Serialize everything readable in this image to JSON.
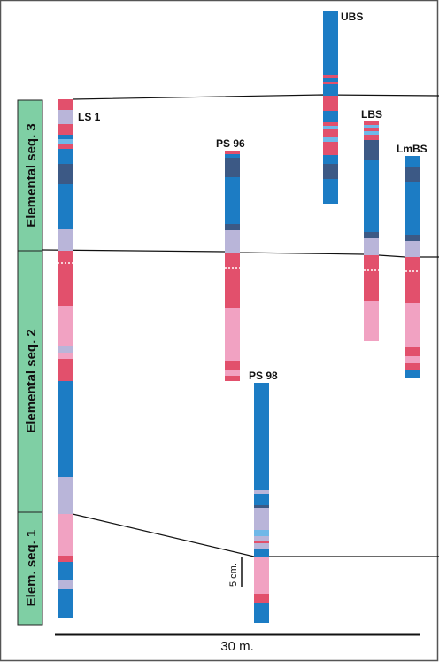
{
  "sequences": [
    {
      "label": "Elemental seq. 3"
    },
    {
      "label": "Elemental seq. 2"
    },
    {
      "label": "Elem. seq. 1"
    }
  ],
  "columns": [
    {
      "label": "LS 1"
    },
    {
      "label": "PS 96"
    },
    {
      "label": "PS 98"
    },
    {
      "label": "UBS"
    },
    {
      "label": "LBS"
    },
    {
      "label": "LmBS"
    }
  ],
  "scale": {
    "vertical": "5 cm.",
    "horizontal": "30 m."
  }
}
